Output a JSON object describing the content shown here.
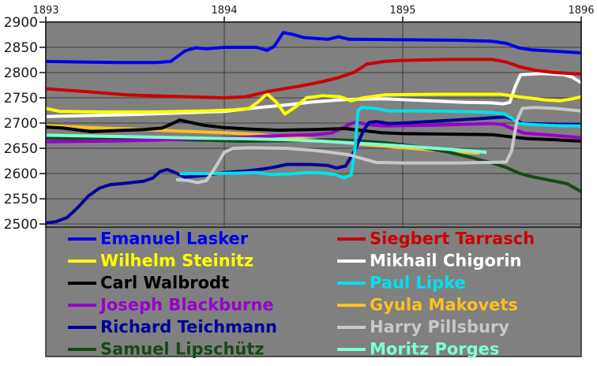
{
  "chart_data": {
    "type": "line",
    "title": "",
    "x_axis": {
      "tick_labels": [
        "1893",
        "1894",
        "1895",
        "1896"
      ],
      "tick_years": [
        1893,
        1894,
        1895,
        1896
      ],
      "min": 1893,
      "max": 1896
    },
    "y_axis": {
      "tick_labels": [
        "2900",
        "2850",
        "2800",
        "2750",
        "2700",
        "2650",
        "2600",
        "2550",
        "2500"
      ],
      "tick_values": [
        2900,
        2850,
        2800,
        2750,
        2700,
        2650,
        2600,
        2550,
        2500
      ],
      "min": 2494,
      "max": 2900
    },
    "grid": true,
    "plot_background": "#808080",
    "grid_color": "#3f3f3f",
    "axis_color": "#111111",
    "label_color": "#1a1a1a",
    "legend_position": "bottom-two-columns",
    "draw_order": [
      7,
      10,
      6,
      4,
      11,
      8,
      5,
      9,
      3,
      2,
      1,
      0
    ],
    "series": [
      {
        "name": "Emanuel Lasker",
        "color": "#0000EE",
        "points": [
          [
            1893.0,
            2822
          ],
          [
            1893.2,
            2821
          ],
          [
            1893.4,
            2820
          ],
          [
            1893.62,
            2820
          ],
          [
            1893.7,
            2822
          ],
          [
            1893.78,
            2843
          ],
          [
            1893.84,
            2849
          ],
          [
            1893.9,
            2847
          ],
          [
            1894.0,
            2850
          ],
          [
            1894.18,
            2850
          ],
          [
            1894.24,
            2844
          ],
          [
            1894.28,
            2852
          ],
          [
            1894.33,
            2879
          ],
          [
            1894.38,
            2876
          ],
          [
            1894.45,
            2869
          ],
          [
            1894.58,
            2866
          ],
          [
            1894.64,
            2871
          ],
          [
            1894.7,
            2866
          ],
          [
            1895.0,
            2865
          ],
          [
            1895.3,
            2864
          ],
          [
            1895.5,
            2862
          ],
          [
            1895.58,
            2858
          ],
          [
            1895.65,
            2849
          ],
          [
            1895.72,
            2845
          ],
          [
            1895.82,
            2843
          ],
          [
            1896.0,
            2839
          ]
        ]
      },
      {
        "name": "Siegbert Tarrasch",
        "color": "#CC0000",
        "points": [
          [
            1893.0,
            2768
          ],
          [
            1893.2,
            2763
          ],
          [
            1893.45,
            2756
          ],
          [
            1893.7,
            2753
          ],
          [
            1893.9,
            2751
          ],
          [
            1894.0,
            2750
          ],
          [
            1894.12,
            2752
          ],
          [
            1894.25,
            2763
          ],
          [
            1894.42,
            2773
          ],
          [
            1894.55,
            2782
          ],
          [
            1894.65,
            2791
          ],
          [
            1894.73,
            2801
          ],
          [
            1894.8,
            2817
          ],
          [
            1894.9,
            2822
          ],
          [
            1895.0,
            2824
          ],
          [
            1895.25,
            2826
          ],
          [
            1895.5,
            2826
          ],
          [
            1895.58,
            2821
          ],
          [
            1895.66,
            2811
          ],
          [
            1895.75,
            2804
          ],
          [
            1895.85,
            2800
          ],
          [
            1896.0,
            2797
          ]
        ]
      },
      {
        "name": "Wilhelm Steinitz",
        "color": "#FFFF00",
        "points": [
          [
            1893.0,
            2729
          ],
          [
            1893.08,
            2723
          ],
          [
            1893.3,
            2722
          ],
          [
            1893.6,
            2722
          ],
          [
            1893.9,
            2724
          ],
          [
            1894.05,
            2726
          ],
          [
            1894.14,
            2729
          ],
          [
            1894.19,
            2742
          ],
          [
            1894.24,
            2758
          ],
          [
            1894.29,
            2742
          ],
          [
            1894.34,
            2718
          ],
          [
            1894.4,
            2732
          ],
          [
            1894.46,
            2750
          ],
          [
            1894.55,
            2754
          ],
          [
            1894.65,
            2752
          ],
          [
            1894.71,
            2744
          ],
          [
            1894.78,
            2750
          ],
          [
            1894.9,
            2756
          ],
          [
            1895.2,
            2757
          ],
          [
            1895.55,
            2757
          ],
          [
            1895.65,
            2752
          ],
          [
            1895.8,
            2746
          ],
          [
            1895.88,
            2744
          ],
          [
            1895.95,
            2748
          ],
          [
            1896.0,
            2752
          ]
        ]
      },
      {
        "name": "Mikhail Chigorin",
        "color": "#FFFFFF",
        "points": [
          [
            1893.0,
            2713
          ],
          [
            1893.5,
            2717
          ],
          [
            1894.0,
            2723
          ],
          [
            1894.2,
            2731
          ],
          [
            1894.35,
            2736
          ],
          [
            1894.5,
            2742
          ],
          [
            1894.7,
            2747
          ],
          [
            1894.9,
            2748
          ],
          [
            1895.1,
            2745
          ],
          [
            1895.35,
            2741
          ],
          [
            1895.5,
            2740
          ],
          [
            1895.56,
            2738
          ],
          [
            1895.6,
            2741
          ],
          [
            1895.63,
            2772
          ],
          [
            1895.66,
            2796
          ],
          [
            1895.78,
            2798
          ],
          [
            1895.9,
            2796
          ],
          [
            1895.95,
            2791
          ],
          [
            1896.0,
            2780
          ]
        ]
      },
      {
        "name": "Carl Walbrodt",
        "color": "#000000",
        "points": [
          [
            1893.0,
            2692
          ],
          [
            1893.1,
            2690
          ],
          [
            1893.25,
            2683
          ],
          [
            1893.38,
            2685
          ],
          [
            1893.55,
            2687
          ],
          [
            1893.65,
            2690
          ],
          [
            1893.71,
            2699
          ],
          [
            1893.75,
            2706
          ],
          [
            1893.8,
            2702
          ],
          [
            1893.88,
            2696
          ],
          [
            1894.0,
            2691
          ],
          [
            1894.15,
            2688
          ],
          [
            1894.3,
            2686
          ],
          [
            1894.5,
            2687
          ],
          [
            1894.68,
            2689
          ],
          [
            1894.78,
            2685
          ],
          [
            1894.88,
            2681
          ],
          [
            1895.0,
            2679
          ],
          [
            1895.3,
            2678
          ],
          [
            1895.5,
            2677
          ],
          [
            1895.6,
            2673
          ],
          [
            1895.7,
            2669
          ],
          [
            1895.85,
            2667
          ],
          [
            1896.0,
            2664
          ]
        ]
      },
      {
        "name": "Paul Lipke",
        "color": "#00E0EE",
        "points": [
          [
            1893.75,
            2600
          ],
          [
            1893.92,
            2600
          ],
          [
            1894.08,
            2601
          ],
          [
            1894.18,
            2602
          ],
          [
            1894.26,
            2598
          ],
          [
            1894.36,
            2599
          ],
          [
            1894.47,
            2602
          ],
          [
            1894.56,
            2601
          ],
          [
            1894.63,
            2597
          ],
          [
            1894.67,
            2591
          ],
          [
            1894.71,
            2597
          ],
          [
            1894.73,
            2640
          ],
          [
            1894.75,
            2725
          ],
          [
            1894.77,
            2731
          ],
          [
            1894.85,
            2729
          ],
          [
            1894.92,
            2724
          ],
          [
            1895.1,
            2724
          ],
          [
            1895.3,
            2723
          ],
          [
            1895.5,
            2721
          ],
          [
            1895.57,
            2718
          ],
          [
            1895.61,
            2710
          ],
          [
            1895.65,
            2699
          ],
          [
            1895.72,
            2697
          ],
          [
            1895.85,
            2695
          ],
          [
            1896.0,
            2694
          ]
        ]
      },
      {
        "name": "Joseph Blackburne",
        "color": "#9900CC",
        "points": [
          [
            1893.0,
            2663
          ],
          [
            1893.3,
            2664
          ],
          [
            1893.6,
            2666
          ],
          [
            1893.9,
            2670
          ],
          [
            1894.1,
            2672
          ],
          [
            1894.3,
            2675
          ],
          [
            1894.5,
            2677
          ],
          [
            1894.6,
            2680
          ],
          [
            1894.66,
            2690
          ],
          [
            1894.71,
            2699
          ],
          [
            1894.74,
            2702
          ],
          [
            1894.8,
            2697
          ],
          [
            1894.9,
            2694
          ],
          [
            1895.0,
            2695
          ],
          [
            1895.2,
            2696
          ],
          [
            1895.4,
            2698
          ],
          [
            1895.5,
            2699
          ],
          [
            1895.56,
            2697
          ],
          [
            1895.62,
            2688
          ],
          [
            1895.68,
            2680
          ],
          [
            1895.8,
            2677
          ],
          [
            1895.9,
            2674
          ],
          [
            1896.0,
            2671
          ]
        ]
      },
      {
        "name": "Gyula Makovets",
        "color": "#FFC020",
        "points": [
          [
            1893.0,
            2695
          ],
          [
            1893.25,
            2691
          ],
          [
            1893.5,
            2688
          ],
          [
            1893.75,
            2684
          ],
          [
            1894.0,
            2681
          ],
          [
            1894.2,
            2677
          ],
          [
            1894.4,
            2671
          ],
          [
            1894.6,
            2664
          ],
          [
            1894.8,
            2657
          ],
          [
            1895.0,
            2651
          ],
          [
            1895.2,
            2646
          ],
          [
            1895.43,
            2640
          ]
        ]
      },
      {
        "name": "Richard Teichmann",
        "color": "#000099",
        "points": [
          [
            1893.0,
            2502
          ],
          [
            1893.06,
            2505
          ],
          [
            1893.12,
            2513
          ],
          [
            1893.18,
            2533
          ],
          [
            1893.24,
            2556
          ],
          [
            1893.3,
            2571
          ],
          [
            1893.36,
            2578
          ],
          [
            1893.45,
            2581
          ],
          [
            1893.55,
            2585
          ],
          [
            1893.6,
            2591
          ],
          [
            1893.64,
            2604
          ],
          [
            1893.68,
            2608
          ],
          [
            1893.73,
            2601
          ],
          [
            1893.78,
            2593
          ],
          [
            1893.88,
            2596
          ],
          [
            1894.0,
            2602
          ],
          [
            1894.12,
            2605
          ],
          [
            1894.22,
            2609
          ],
          [
            1894.3,
            2614
          ],
          [
            1894.35,
            2618
          ],
          [
            1894.48,
            2618
          ],
          [
            1894.58,
            2616
          ],
          [
            1894.63,
            2611
          ],
          [
            1894.68,
            2615
          ],
          [
            1894.73,
            2645
          ],
          [
            1894.78,
            2685
          ],
          [
            1894.81,
            2701
          ],
          [
            1894.85,
            2703
          ],
          [
            1894.92,
            2699
          ],
          [
            1895.0,
            2700
          ],
          [
            1895.2,
            2704
          ],
          [
            1895.4,
            2708
          ],
          [
            1895.52,
            2711
          ],
          [
            1895.58,
            2712
          ],
          [
            1895.63,
            2706
          ],
          [
            1895.67,
            2699
          ],
          [
            1895.8,
            2698
          ],
          [
            1896.0,
            2697
          ]
        ]
      },
      {
        "name": "Harry Pillsbury",
        "color": "#C8C8C8",
        "points": [
          [
            1893.73,
            2588
          ],
          [
            1893.8,
            2586
          ],
          [
            1893.85,
            2582
          ],
          [
            1893.9,
            2586
          ],
          [
            1893.95,
            2612
          ],
          [
            1894.0,
            2642
          ],
          [
            1894.05,
            2650
          ],
          [
            1894.15,
            2651
          ],
          [
            1894.35,
            2650
          ],
          [
            1894.5,
            2646
          ],
          [
            1894.62,
            2641
          ],
          [
            1894.7,
            2637
          ],
          [
            1894.78,
            2629
          ],
          [
            1894.85,
            2622
          ],
          [
            1895.0,
            2621
          ],
          [
            1895.3,
            2621
          ],
          [
            1895.5,
            2622
          ],
          [
            1895.58,
            2623
          ],
          [
            1895.61,
            2645
          ],
          [
            1895.64,
            2705
          ],
          [
            1895.67,
            2729
          ],
          [
            1895.74,
            2731
          ],
          [
            1895.85,
            2729
          ],
          [
            1896.0,
            2724
          ]
        ]
      },
      {
        "name": "Samuel Lipschütz",
        "color": "#164A16",
        "points": [
          [
            1893.0,
            2670
          ],
          [
            1893.3,
            2669
          ],
          [
            1893.6,
            2668
          ],
          [
            1893.9,
            2666
          ],
          [
            1894.1,
            2664
          ],
          [
            1894.35,
            2665
          ],
          [
            1894.6,
            2667
          ],
          [
            1894.75,
            2665
          ],
          [
            1894.9,
            2661
          ],
          [
            1895.0,
            2657
          ],
          [
            1895.12,
            2651
          ],
          [
            1895.25,
            2643
          ],
          [
            1895.38,
            2632
          ],
          [
            1895.5,
            2621
          ],
          [
            1895.58,
            2612
          ],
          [
            1895.65,
            2601
          ],
          [
            1895.72,
            2594
          ],
          [
            1895.82,
            2587
          ],
          [
            1895.92,
            2580
          ],
          [
            1896.0,
            2564
          ]
        ]
      },
      {
        "name": "Moritz Porges",
        "color": "#7FFFD4",
        "points": [
          [
            1893.0,
            2676
          ],
          [
            1893.3,
            2674
          ],
          [
            1893.6,
            2672
          ],
          [
            1893.9,
            2670
          ],
          [
            1894.1,
            2669
          ],
          [
            1894.35,
            2667
          ],
          [
            1894.55,
            2664
          ],
          [
            1894.75,
            2660
          ],
          [
            1894.95,
            2656
          ],
          [
            1895.1,
            2652
          ],
          [
            1895.3,
            2647
          ],
          [
            1895.47,
            2642
          ]
        ]
      }
    ]
  }
}
